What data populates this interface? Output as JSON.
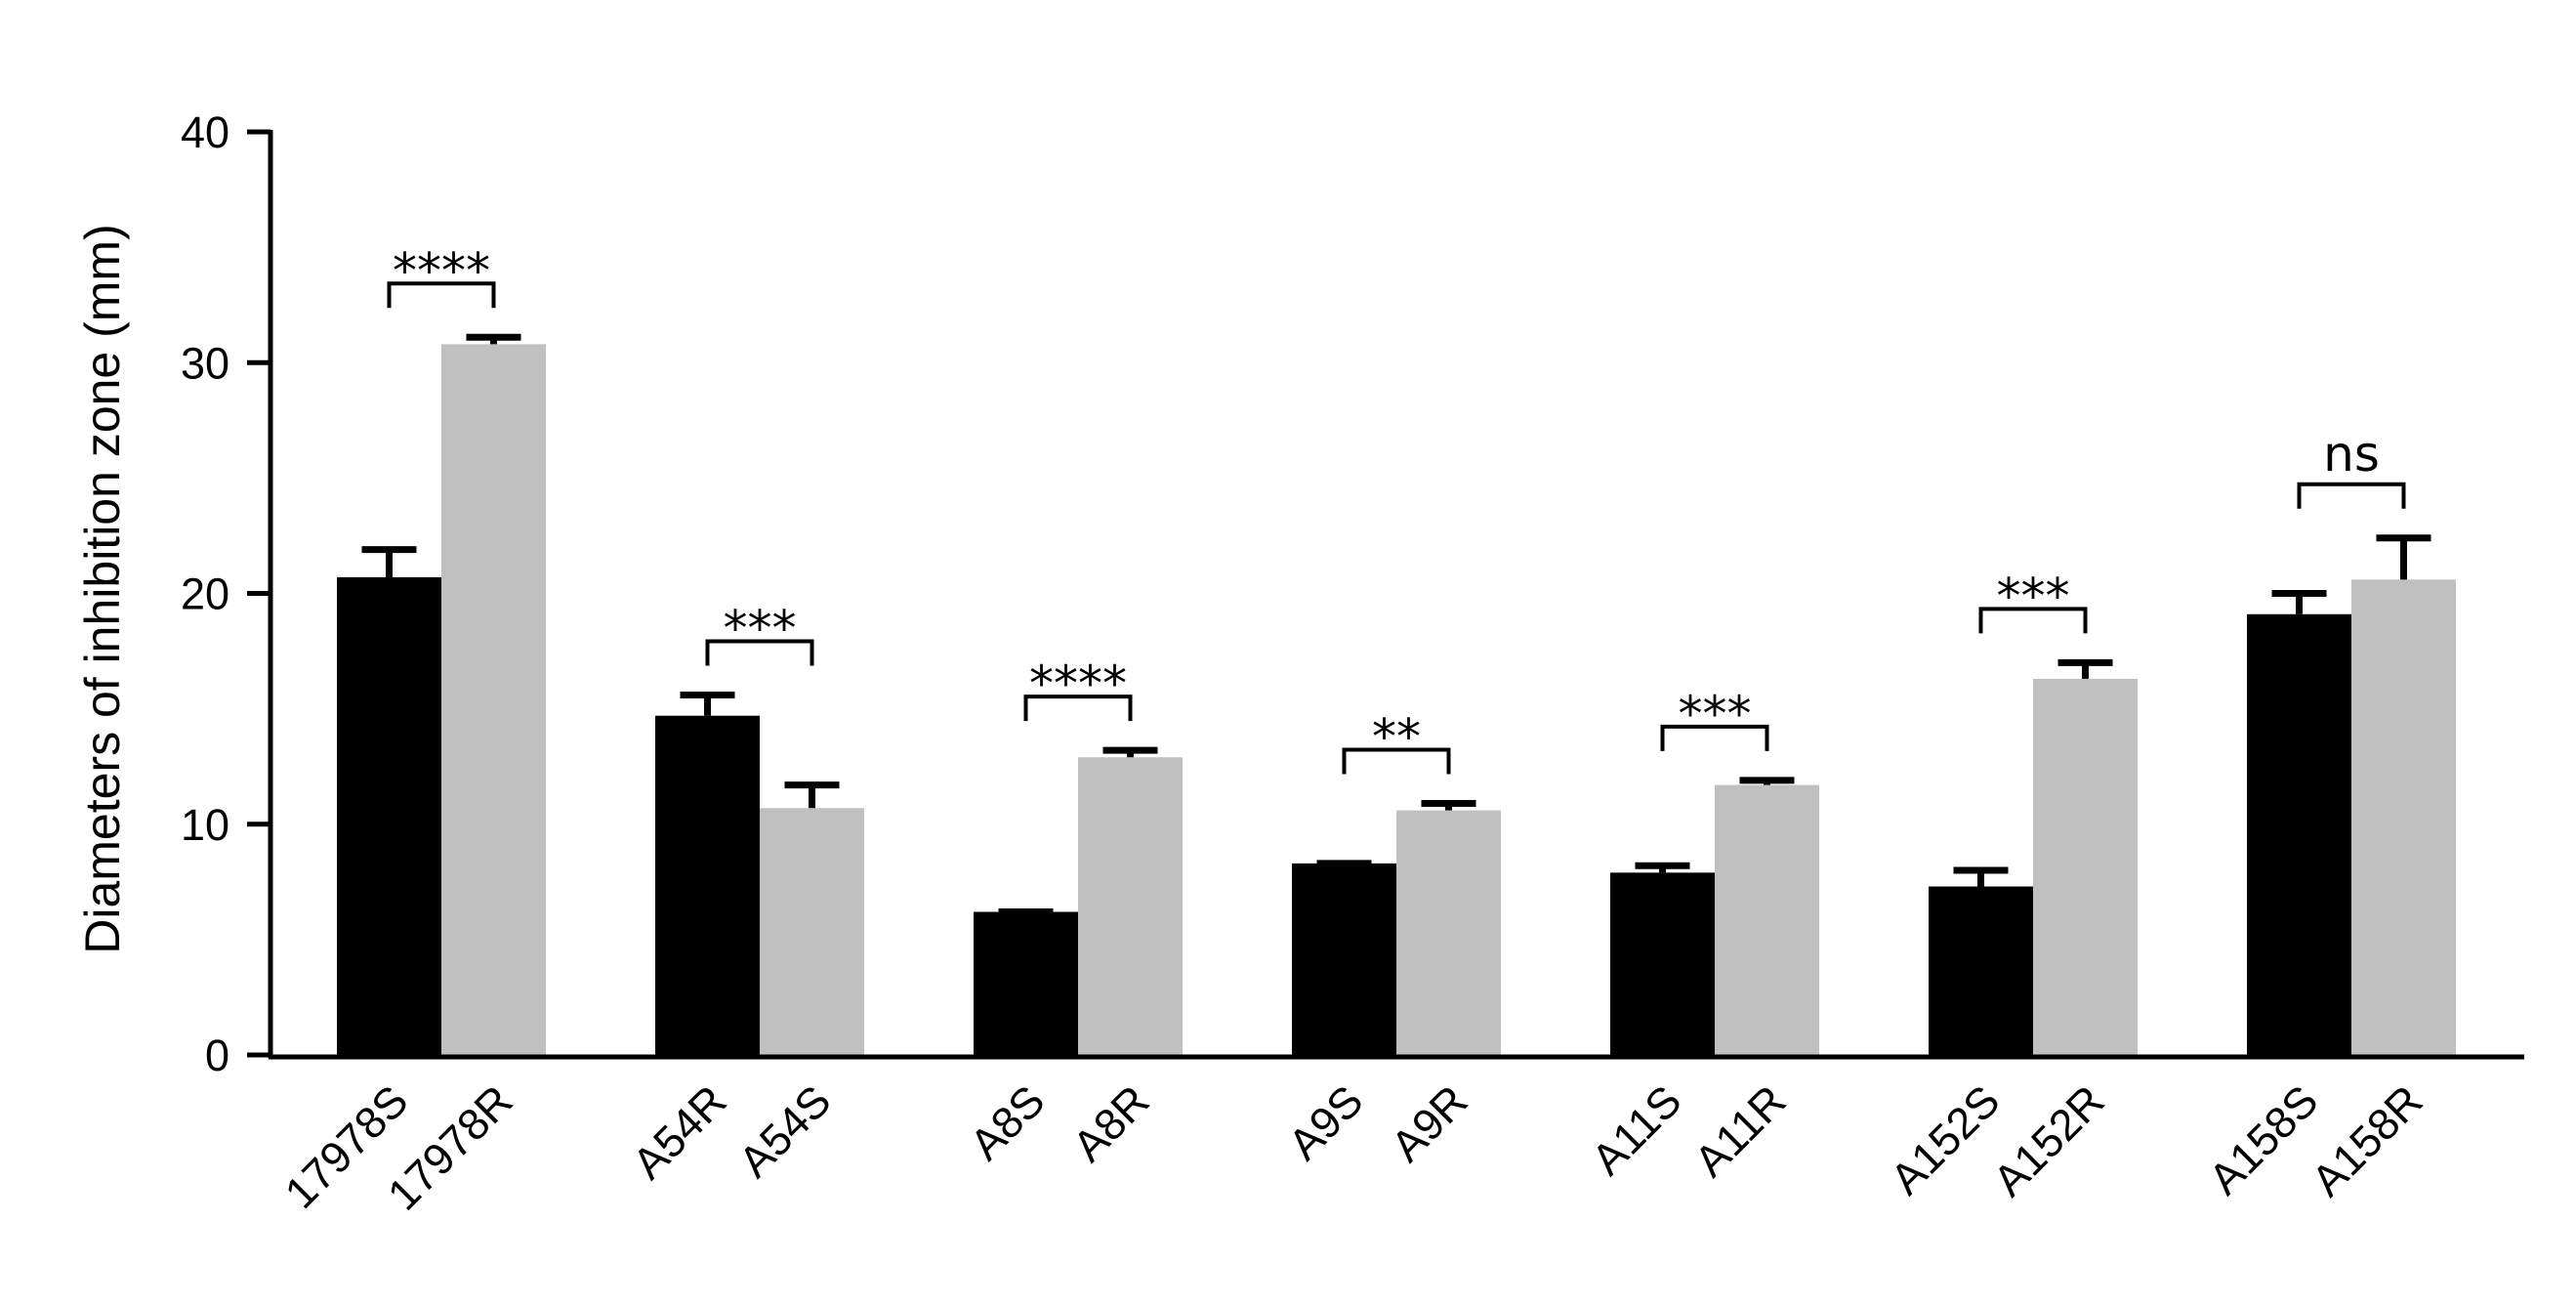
{
  "chart_data": {
    "type": "bar",
    "title": "",
    "xlabel": "",
    "ylabel": "Diameters of inhibition zone (mm)",
    "ylim": [
      0,
      40
    ],
    "yticks": [
      0,
      10,
      20,
      30,
      40
    ],
    "grid": false,
    "legend": "none",
    "colors": {
      "dark": "#000000",
      "light": "#c0c0c0"
    },
    "groups": [
      {
        "bars": [
          {
            "label": "17978S",
            "value": 20.7,
            "error": 1.2,
            "color": "dark"
          },
          {
            "label": "17978R",
            "value": 30.8,
            "error": 0.3,
            "color": "light"
          }
        ],
        "significance": "****"
      },
      {
        "bars": [
          {
            "label": "A54R",
            "value": 14.7,
            "error": 0.9,
            "color": "dark"
          },
          {
            "label": "A54S",
            "value": 10.7,
            "error": 1.0,
            "color": "light"
          }
        ],
        "significance": "***"
      },
      {
        "bars": [
          {
            "label": "A8S",
            "value": 6.2,
            "error": 0.0,
            "color": "dark"
          },
          {
            "label": "A8R",
            "value": 12.9,
            "error": 0.3,
            "color": "light"
          }
        ],
        "significance": "****"
      },
      {
        "bars": [
          {
            "label": "A9S",
            "value": 8.3,
            "error": 0.0,
            "color": "dark"
          },
          {
            "label": "A9R",
            "value": 10.6,
            "error": 0.3,
            "color": "light"
          }
        ],
        "significance": "**"
      },
      {
        "bars": [
          {
            "label": "A11S",
            "value": 7.9,
            "error": 0.3,
            "color": "dark"
          },
          {
            "label": "A11R",
            "value": 11.7,
            "error": 0.2,
            "color": "light"
          }
        ],
        "significance": "***"
      },
      {
        "bars": [
          {
            "label": "A152S",
            "value": 7.3,
            "error": 0.7,
            "color": "dark"
          },
          {
            "label": "A152R",
            "value": 16.3,
            "error": 0.7,
            "color": "light"
          }
        ],
        "significance": "***"
      },
      {
        "bars": [
          {
            "label": "A158S",
            "value": 19.1,
            "error": 0.9,
            "color": "dark"
          },
          {
            "label": "A158R",
            "value": 20.6,
            "error": 1.8,
            "color": "light"
          }
        ],
        "significance": "ns"
      }
    ]
  }
}
